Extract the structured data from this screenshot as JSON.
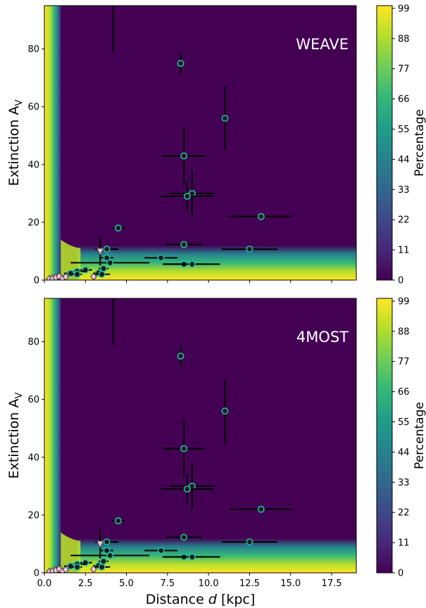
{
  "colors": {
    "viridis": [
      "#440154",
      "#482878",
      "#3e4989",
      "#31688e",
      "#26828e",
      "#1f9e89",
      "#35b779",
      "#6ece58",
      "#b5de2b",
      "#fde725"
    ],
    "point_fill": "#1a1a1a",
    "point_edge": "#20c0a8",
    "upper_limit_fill": "#f7c6d6",
    "error_bar": "#000000",
    "panel_label": "#ffffff"
  },
  "colorbar": {
    "label": "Percentage",
    "ticks": [
      "99",
      "88",
      "77",
      "66",
      "55",
      "44",
      "33",
      "22",
      "11",
      "0"
    ]
  },
  "chart_data": [
    {
      "type": "scatter",
      "panel_label": "WEAVE",
      "xlabel": "",
      "ylabel_main": "Extinction A",
      "ylabel_sub": "V",
      "xlim": [
        0,
        19
      ],
      "ylim": [
        0,
        95
      ],
      "x_ticks": [],
      "y_ticks": [
        "0",
        "20",
        "40",
        "60",
        "80"
      ],
      "background": "percentage heatmap (viridis)",
      "points": [
        {
          "x": 8.3,
          "y": 75,
          "xerr": 0,
          "yerr": 3.5
        },
        {
          "x": 11.0,
          "y": 56,
          "xerr": 0,
          "yerr": 11
        },
        {
          "x": 8.5,
          "y": 43,
          "xerr": 1.3,
          "yerr": 10
        },
        {
          "x": 9.0,
          "y": 30,
          "xerr": 1.4,
          "yerr": 8
        },
        {
          "x": 8.7,
          "y": 29,
          "xerr": 1.6,
          "yerr": 5
        },
        {
          "x": 13.2,
          "y": 22,
          "xerr": 1.9,
          "yerr": 0
        },
        {
          "x": 4.5,
          "y": 18,
          "xerr": 0.4,
          "yerr": 0
        },
        {
          "x": 8.5,
          "y": 12.3,
          "xerr": 1.1,
          "yerr": 0
        },
        {
          "x": 12.5,
          "y": 10.7,
          "xerr": 1.7,
          "yerr": 0
        },
        {
          "x": 3.8,
          "y": 10.7,
          "xerr": 0.7,
          "yerr": 0
        },
        {
          "x": 7.1,
          "y": 7.7,
          "xerr": 1.0,
          "yerr": 0
        },
        {
          "x": 3.8,
          "y": 7.7,
          "xerr": 0.4,
          "yerr": 0
        },
        {
          "x": 4.0,
          "y": 6.0,
          "xerr": 2.4,
          "yerr": 0
        },
        {
          "x": 8.5,
          "y": 5.5,
          "xerr": 1.3,
          "yerr": 0
        },
        {
          "x": 9.0,
          "y": 5.5,
          "xerr": 1.7,
          "yerr": 0
        },
        {
          "x": 3.6,
          "y": 4.0,
          "xerr": 0.3,
          "yerr": 0
        },
        {
          "x": 2.5,
          "y": 3.5,
          "xerr": 0.4,
          "yerr": 0
        },
        {
          "x": 3.3,
          "y": 2.5,
          "xerr": 0.3,
          "yerr": 0
        },
        {
          "x": 3.5,
          "y": 2.0,
          "xerr": 0.5,
          "yerr": 0
        },
        {
          "x": 2.0,
          "y": 3.0,
          "xerr": 0.5,
          "yerr": 0
        },
        {
          "x": 1.6,
          "y": 2.3,
          "xerr": 0.4,
          "yerr": 0
        },
        {
          "x": 2.0,
          "y": 2.0,
          "xerr": 0.3,
          "yerr": 0
        }
      ],
      "upper_limits": [
        {
          "x": 3.4,
          "y": 10,
          "yerr": 5
        }
      ],
      "diamonds": [
        {
          "x": 0.3,
          "y": 0.4
        },
        {
          "x": 0.5,
          "y": 0.6
        },
        {
          "x": 0.7,
          "y": 0.9
        },
        {
          "x": 0.9,
          "y": 1.3
        },
        {
          "x": 1.1,
          "y": 0.5
        },
        {
          "x": 1.3,
          "y": 1.1
        },
        {
          "x": 3.0,
          "y": 1.2
        }
      ],
      "lower_limit_bar": {
        "x": 4.2,
        "y_low": 79,
        "y_high": 95
      }
    },
    {
      "type": "scatter",
      "panel_label": "4MOST",
      "xlabel_main": "Distance ",
      "xlabel_italic": "d",
      "xlabel_rest": " [kpc]",
      "ylabel_main": "Extinction A",
      "ylabel_sub": "V",
      "xlim": [
        0,
        19
      ],
      "ylim": [
        0,
        95
      ],
      "x_ticks": [
        "0.0",
        "2.5",
        "5.0",
        "7.5",
        "10.0",
        "12.5",
        "15.0",
        "17.5"
      ],
      "y_ticks": [
        "0",
        "20",
        "40",
        "60",
        "80"
      ],
      "background": "percentage heatmap (viridis)",
      "points": [
        {
          "x": 8.3,
          "y": 75,
          "xerr": 0,
          "yerr": 3.5
        },
        {
          "x": 11.0,
          "y": 56,
          "xerr": 0,
          "yerr": 11
        },
        {
          "x": 8.5,
          "y": 43,
          "xerr": 1.3,
          "yerr": 10
        },
        {
          "x": 9.0,
          "y": 30,
          "xerr": 1.4,
          "yerr": 8
        },
        {
          "x": 8.7,
          "y": 29,
          "xerr": 1.6,
          "yerr": 5
        },
        {
          "x": 13.2,
          "y": 22,
          "xerr": 1.9,
          "yerr": 0
        },
        {
          "x": 4.5,
          "y": 18,
          "xerr": 0.4,
          "yerr": 0
        },
        {
          "x": 8.5,
          "y": 12.3,
          "xerr": 1.1,
          "yerr": 0
        },
        {
          "x": 12.5,
          "y": 10.7,
          "xerr": 1.7,
          "yerr": 0
        },
        {
          "x": 3.8,
          "y": 10.7,
          "xerr": 0.7,
          "yerr": 0
        },
        {
          "x": 7.1,
          "y": 7.7,
          "xerr": 1.0,
          "yerr": 0
        },
        {
          "x": 3.8,
          "y": 7.7,
          "xerr": 0.4,
          "yerr": 0
        },
        {
          "x": 4.0,
          "y": 6.0,
          "xerr": 2.4,
          "yerr": 0
        },
        {
          "x": 8.5,
          "y": 5.5,
          "xerr": 1.3,
          "yerr": 0
        },
        {
          "x": 9.0,
          "y": 5.5,
          "xerr": 1.7,
          "yerr": 0
        },
        {
          "x": 3.6,
          "y": 4.0,
          "xerr": 0.3,
          "yerr": 0
        },
        {
          "x": 2.5,
          "y": 3.5,
          "xerr": 0.4,
          "yerr": 0
        },
        {
          "x": 3.3,
          "y": 2.5,
          "xerr": 0.3,
          "yerr": 0
        },
        {
          "x": 3.5,
          "y": 2.0,
          "xerr": 0.5,
          "yerr": 0
        },
        {
          "x": 2.0,
          "y": 3.0,
          "xerr": 0.5,
          "yerr": 0
        },
        {
          "x": 1.6,
          "y": 2.3,
          "xerr": 0.4,
          "yerr": 0
        },
        {
          "x": 2.0,
          "y": 2.0,
          "xerr": 0.3,
          "yerr": 0
        }
      ],
      "upper_limits": [
        {
          "x": 3.4,
          "y": 10,
          "yerr": 5
        }
      ],
      "diamonds": [
        {
          "x": 0.3,
          "y": 0.4
        },
        {
          "x": 0.5,
          "y": 0.6
        },
        {
          "x": 0.7,
          "y": 0.9
        },
        {
          "x": 0.9,
          "y": 1.3
        },
        {
          "x": 1.1,
          "y": 0.5
        },
        {
          "x": 1.3,
          "y": 1.1
        },
        {
          "x": 3.0,
          "y": 1.2
        }
      ],
      "lower_limit_bar": {
        "x": 4.2,
        "y_low": 79,
        "y_high": 95
      }
    }
  ]
}
